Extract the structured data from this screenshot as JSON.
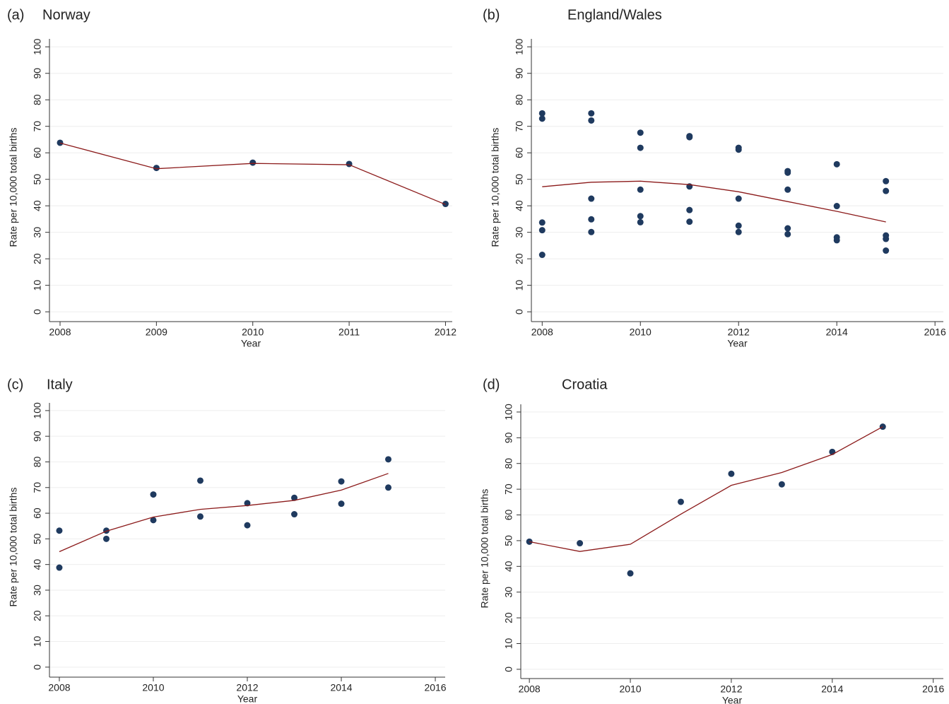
{
  "chart_data": [
    {
      "type": "scatter",
      "panel_label": "(a)",
      "title": "Norway",
      "x_label": "Year",
      "y_label": "Rate per 10,000 total births",
      "xlim": [
        2007.89,
        2012.07
      ],
      "xticks": [
        2008,
        2009,
        2010,
        2011,
        2012
      ],
      "ylim": [
        -3.7,
        103
      ],
      "yticks": [
        0,
        10,
        20,
        30,
        40,
        50,
        60,
        70,
        80,
        90,
        100
      ],
      "grid": true,
      "series": [
        {
          "kind": "scatter",
          "color": "#1f3a5f",
          "x": [
            2008,
            2009,
            2010,
            2011,
            2012
          ],
          "values": [
            63.8,
            54.3,
            56.3,
            55.8,
            40.7
          ]
        },
        {
          "kind": "line",
          "color": "#8b1a1a",
          "x": [
            2008,
            2009,
            2010,
            2011,
            2012
          ],
          "values": [
            63.7,
            54.0,
            56.0,
            55.5,
            40.5
          ]
        }
      ]
    },
    {
      "type": "scatter",
      "panel_label": "(b)",
      "title": "England/Wales",
      "x_label": "Year",
      "y_label": "Rate per 10,000 total births",
      "xlim": [
        2007.78,
        2016.17
      ],
      "xticks": [
        2008,
        2010,
        2012,
        2014,
        2016
      ],
      "ylim": [
        -3.7,
        103
      ],
      "yticks": [
        0,
        10,
        20,
        30,
        40,
        50,
        60,
        70,
        80,
        90,
        100
      ],
      "grid": true,
      "series": [
        {
          "kind": "scatter",
          "color": "#1f3a5f",
          "x": [
            2008,
            2008,
            2008,
            2008,
            2008,
            2009,
            2009,
            2009,
            2009,
            2009,
            2010,
            2010,
            2010,
            2010,
            2010,
            2011,
            2011,
            2011,
            2011,
            2011,
            2012,
            2012,
            2012,
            2012,
            2012,
            2013,
            2013,
            2013,
            2013,
            2013,
            2014,
            2014,
            2014,
            2014,
            2015,
            2015,
            2015,
            2015,
            2015
          ],
          "values": [
            74.9,
            72.9,
            33.7,
            30.8,
            21.5,
            74.9,
            72.2,
            42.7,
            34.9,
            30.1,
            67.6,
            61.9,
            46.1,
            36.1,
            33.8,
            66.3,
            65.9,
            47.3,
            38.4,
            34.0,
            61.9,
            61.2,
            42.7,
            32.5,
            30.1,
            53.1,
            52.5,
            46.1,
            31.5,
            29.3,
            55.7,
            39.9,
            28.1,
            27.0,
            49.3,
            45.6,
            28.8,
            27.5,
            23.1
          ]
        },
        {
          "kind": "line",
          "color": "#8b1a1a",
          "x": [
            2008,
            2009,
            2010,
            2011,
            2012,
            2013,
            2014,
            2015
          ],
          "values": [
            47.2,
            48.9,
            49.3,
            48.0,
            45.3,
            41.6,
            37.9,
            33.9
          ]
        }
      ]
    },
    {
      "type": "scatter",
      "panel_label": "(c)",
      "title": "Italy",
      "x_label": "Year",
      "y_label": "Rate per 10,000 total births",
      "xlim": [
        2007.79,
        2016.21
      ],
      "xticks": [
        2008,
        2010,
        2012,
        2014,
        2016
      ],
      "ylim": [
        -3.9,
        103
      ],
      "yticks": [
        0,
        10,
        20,
        30,
        40,
        50,
        60,
        70,
        80,
        90,
        100
      ],
      "grid": true,
      "series": [
        {
          "kind": "scatter",
          "color": "#1f3a5f",
          "x": [
            2008,
            2008,
            2009,
            2009,
            2010,
            2010,
            2011,
            2011,
            2012,
            2012,
            2013,
            2013,
            2014,
            2014,
            2015,
            2015
          ],
          "values": [
            53.2,
            38.8,
            53.2,
            50.0,
            67.3,
            57.3,
            72.7,
            58.7,
            63.9,
            55.3,
            66.0,
            59.6,
            72.4,
            63.7,
            81.0,
            70.0
          ]
        },
        {
          "kind": "line",
          "color": "#8b1a1a",
          "x": [
            2008,
            2009,
            2010,
            2011,
            2012,
            2013,
            2014,
            2015
          ],
          "values": [
            45.0,
            53.0,
            58.5,
            61.5,
            63.0,
            65.0,
            69.0,
            75.5
          ]
        }
      ]
    },
    {
      "type": "scatter",
      "panel_label": "(d)",
      "title": "Croatia",
      "x_label": "Year",
      "y_label": "Rate per 10,000 total births",
      "xlim": [
        2007.83,
        2016.2
      ],
      "xticks": [
        2008,
        2010,
        2012,
        2014,
        2016
      ],
      "ylim": [
        -3.6,
        103
      ],
      "yticks": [
        0,
        10,
        20,
        30,
        40,
        50,
        60,
        70,
        80,
        90,
        100
      ],
      "grid": true,
      "series": [
        {
          "kind": "scatter",
          "color": "#1f3a5f",
          "x": [
            2008,
            2009,
            2010,
            2011,
            2012,
            2013,
            2014,
            2015
          ],
          "values": [
            49.6,
            49.0,
            37.3,
            65.1,
            76.0,
            71.9,
            84.5,
            94.3
          ]
        },
        {
          "kind": "line",
          "color": "#8b1a1a",
          "x": [
            2008,
            2009,
            2010,
            2011,
            2012,
            2013,
            2014,
            2015
          ],
          "values": [
            49.6,
            45.8,
            48.6,
            60.3,
            71.5,
            76.5,
            83.5,
            94.3
          ]
        }
      ]
    }
  ]
}
